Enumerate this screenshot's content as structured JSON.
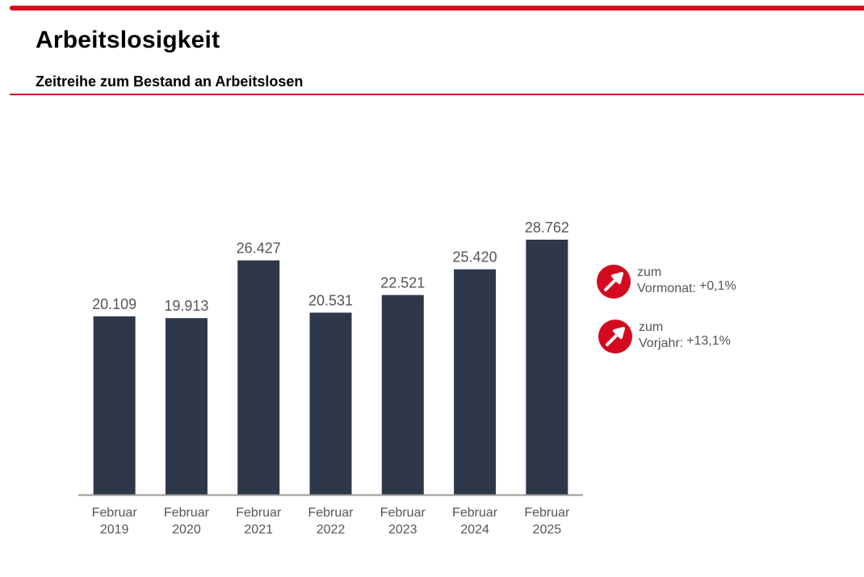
{
  "header": {
    "title": "Arbeitslosigkeit",
    "subtitle": "Zeitreihe zum Bestand an Arbeitslosen"
  },
  "colors": {
    "accent": "#d40a1e",
    "bar": "#2f374b",
    "axis": "#999999",
    "text_muted": "#555555"
  },
  "indicators": [
    {
      "icon": "arrow-up-right-icon",
      "line1": "zum",
      "label": "Vormonat:",
      "value": "+0,1%"
    },
    {
      "icon": "arrow-up-right-icon",
      "line1": "zum",
      "label": "Vorjahr:",
      "value": "+13,1%"
    }
  ],
  "chart_data": {
    "type": "bar",
    "title": "Zeitreihe zum Bestand an Arbeitslosen",
    "xlabel": "",
    "ylabel": "",
    "categories": [
      [
        "Februar",
        "2019"
      ],
      [
        "Februar",
        "2020"
      ],
      [
        "Februar",
        "2021"
      ],
      [
        "Februar",
        "2022"
      ],
      [
        "Februar",
        "2023"
      ],
      [
        "Februar",
        "2024"
      ],
      [
        "Februar",
        "2025"
      ]
    ],
    "values": [
      20109,
      19913,
      26427,
      20531,
      22521,
      25420,
      28762
    ],
    "value_labels": [
      "20.109",
      "19.913",
      "26.427",
      "20.531",
      "22.521",
      "25.420",
      "28.762"
    ],
    "ylim": [
      0,
      28762
    ],
    "grid": false,
    "legend": "none",
    "y_axis_visible": false
  }
}
